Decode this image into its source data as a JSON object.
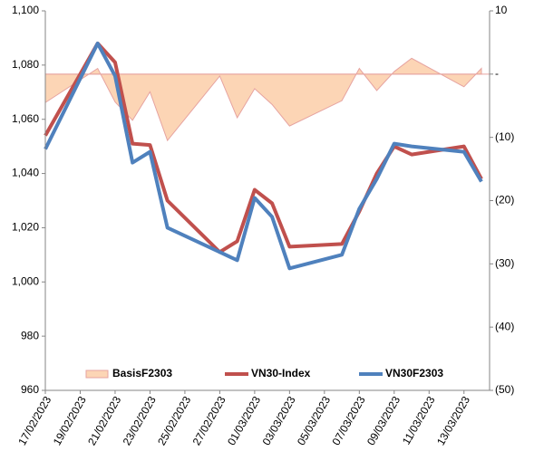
{
  "chart_data": {
    "type": "combo",
    "x": [
      "17/02/2023",
      "20/02/2023",
      "21/02/2023",
      "22/02/2023",
      "23/02/2023",
      "24/02/2023",
      "27/02/2023",
      "28/02/2023",
      "01/03/2023",
      "02/03/2023",
      "03/03/2023",
      "06/03/2023",
      "07/03/2023",
      "08/03/2023",
      "09/03/2023",
      "10/03/2023",
      "13/03/2023",
      "14/03/2023"
    ],
    "xlim": [
      "17/02/2023",
      "14/03/2023"
    ],
    "xticks": [
      "17/02/2023",
      "19/02/2023",
      "21/02/2023",
      "23/02/2023",
      "25/02/2023",
      "27/02/2023",
      "01/03/2023",
      "03/03/2023",
      "05/03/2023",
      "07/03/2023",
      "09/03/2023",
      "11/03/2023",
      "13/03/2023"
    ],
    "series": [
      {
        "name": "BasisF2303",
        "type": "area",
        "axis": "y2",
        "color": "#fcd5b5",
        "stroke": "#e6a3a0",
        "values": [
          -4.5,
          0.9,
          -4.4,
          -7.3,
          -2.8,
          -10.5,
          -0.3,
          -6.9,
          -2.3,
          -4.8,
          -8.2,
          -4.2,
          0.9,
          -2.6,
          0.4,
          2.5,
          -2.0,
          0.9
        ]
      },
      {
        "name": "VN30-Index",
        "type": "line",
        "color": "#c0504d",
        "values": [
          1054,
          1088,
          1081,
          1051,
          1050.5,
          1030,
          1011,
          1015,
          1034,
          1029,
          1013,
          1014,
          1026,
          1040,
          1050,
          1047,
          1050,
          1038
        ]
      },
      {
        "name": "VN30F2303",
        "type": "line",
        "color": "#4f81bd",
        "values": [
          1049,
          1088,
          1076,
          1044,
          1048,
          1020,
          1011,
          1008,
          1031,
          1024,
          1005,
          1010,
          1027,
          1038,
          1051,
          1050,
          1048,
          1037
        ]
      }
    ],
    "ylim": [
      960,
      1100
    ],
    "yticks": [
      {
        "value": 960,
        "label": "960"
      },
      {
        "value": 980,
        "label": "980"
      },
      {
        "value": 1000,
        "label": "1,000"
      },
      {
        "value": 1020,
        "label": "1,020"
      },
      {
        "value": 1040,
        "label": "1,040"
      },
      {
        "value": 1060,
        "label": "1,060"
      },
      {
        "value": 1080,
        "label": "1,080"
      },
      {
        "value": 1100,
        "label": "1,100"
      }
    ],
    "y2lim": [
      -50,
      10
    ],
    "y2ticks": [
      {
        "value": -50,
        "label": "(50)"
      },
      {
        "value": -40,
        "label": "(40)"
      },
      {
        "value": -30,
        "label": "(30)"
      },
      {
        "value": -20,
        "label": "(20)"
      },
      {
        "value": -10,
        "label": "(10)"
      },
      {
        "value": 0,
        "label": "-"
      },
      10
    ],
    "legend": "bottom"
  }
}
